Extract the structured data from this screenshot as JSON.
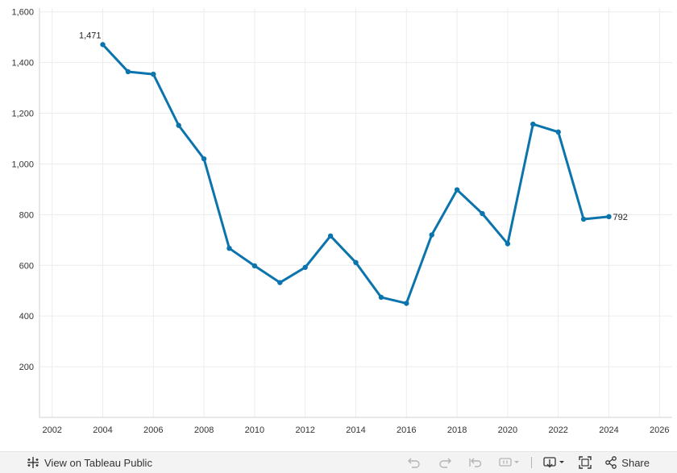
{
  "chart_data": {
    "type": "line",
    "x": [
      2004,
      2005,
      2006,
      2007,
      2008,
      2009,
      2010,
      2011,
      2012,
      2013,
      2014,
      2015,
      2016,
      2017,
      2018,
      2019,
      2020,
      2021,
      2022,
      2023,
      2024
    ],
    "series": [
      {
        "values": [
          1471,
          1364,
          1354,
          1152,
          1020,
          667,
          598,
          532,
          592,
          716,
          611,
          474,
          450,
          720,
          898,
          804,
          685,
          1157,
          1126,
          782,
          792
        ],
        "color": "#0b74ac"
      }
    ],
    "point_labels": [
      {
        "x": 2004,
        "text": "1,471"
      },
      {
        "x": 2024,
        "text": "792"
      }
    ],
    "x_ticks": [
      2002,
      2004,
      2006,
      2008,
      2010,
      2012,
      2014,
      2016,
      2018,
      2020,
      2022,
      2024,
      2026
    ],
    "y_ticks": [
      {
        "value": 200,
        "label": "200"
      },
      {
        "value": 400,
        "label": "400"
      },
      {
        "value": 600,
        "label": "600"
      },
      {
        "value": 800,
        "label": "800"
      },
      {
        "value": 1000,
        "label": "1,000"
      },
      {
        "value": 1200,
        "label": "1,200"
      },
      {
        "value": 1400,
        "label": "1,400"
      },
      {
        "value": 1600,
        "label": "1,600"
      }
    ],
    "xlim": [
      2001.5,
      2026.5
    ],
    "ylim": [
      0,
      1615
    ],
    "title": "",
    "xlabel": "",
    "ylabel": "",
    "grid": true
  },
  "footer": {
    "view_label": "View on Tableau Public",
    "share_label": "Share",
    "icons": [
      "tableau-logo-icon",
      "undo-icon",
      "redo-icon",
      "revert-icon",
      "pause-icon",
      "download-icon",
      "fullscreen-icon",
      "share-icon"
    ]
  }
}
